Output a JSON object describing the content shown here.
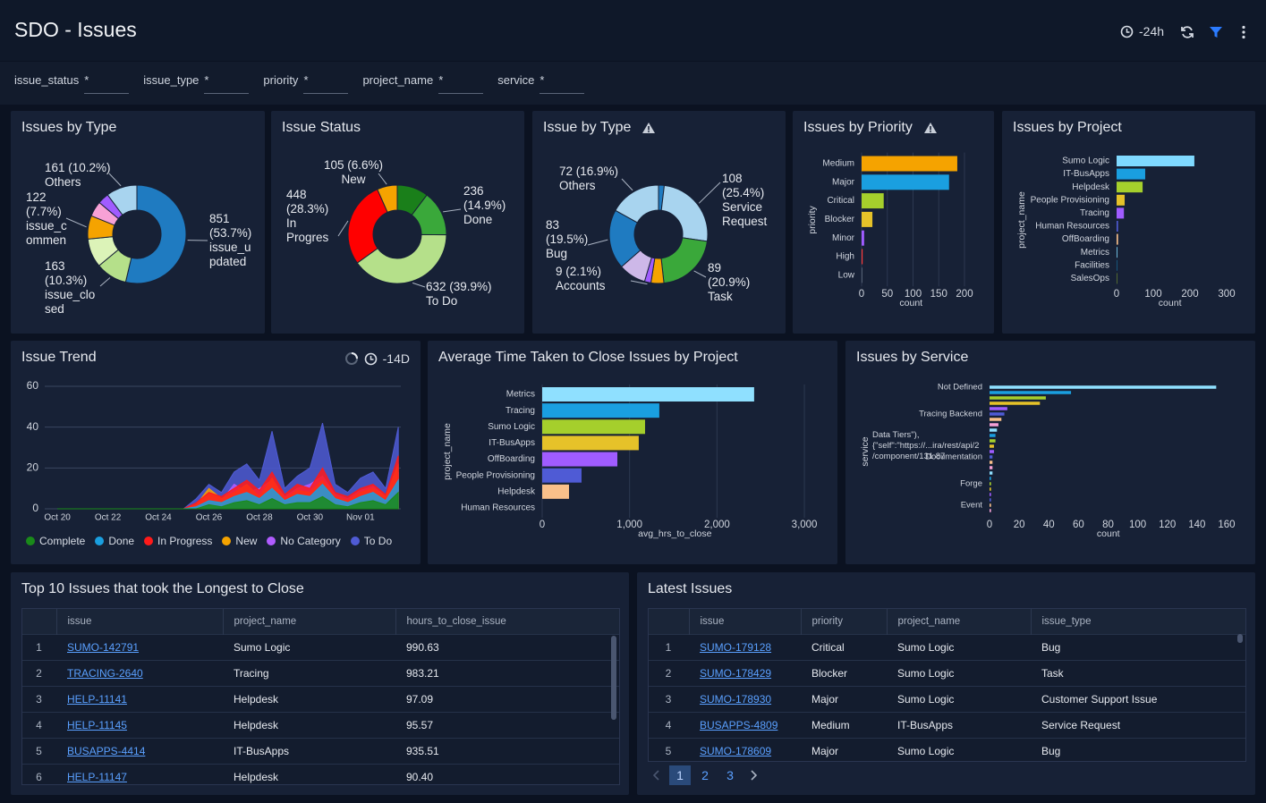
{
  "header": {
    "title": "SDO - Issues",
    "time_range": "-24h"
  },
  "filters": [
    {
      "label": "issue_status",
      "value": "*"
    },
    {
      "label": "issue_type",
      "value": "*"
    },
    {
      "label": "priority",
      "value": "*"
    },
    {
      "label": "project_name",
      "value": "*"
    },
    {
      "label": "service",
      "value": "*"
    }
  ],
  "chart_data": [
    {
      "type": "pie",
      "title": "Issues by Type",
      "categories": [
        "issue_updated",
        "issue_closed",
        null,
        "issue_commen",
        null,
        null,
        "Others"
      ],
      "values": [
        851,
        163,
        150,
        122,
        80,
        58,
        161
      ],
      "value_labels": [
        "851 (53.7%)",
        "163 (10.3%)",
        null,
        "122 (7.7%)",
        null,
        null,
        "161 (10.2%)"
      ],
      "colors": [
        "#1f7bc1",
        "#b5e08a",
        "#dcf3b8",
        "#f5a300",
        "#f7a1d6",
        "#a05cff",
        "#a8d4ef"
      ]
    },
    {
      "type": "pie",
      "title": "Issue Status",
      "categories": [
        null,
        "Done",
        "To Do",
        "In Progres",
        "New"
      ],
      "values": [
        163,
        236,
        632,
        448,
        105
      ],
      "value_labels": [
        null,
        "236 (14.9%)",
        "632 (39.9%)",
        "448 (28.3%)",
        "105 (6.6%)"
      ],
      "colors": [
        "#1a7f1a",
        "#3aa83a",
        "#b5e08a",
        "#ff0000",
        "#f5a300"
      ]
    },
    {
      "type": "pie",
      "title": "Issue by Type",
      "categories": [
        null,
        "Service Request",
        "Task",
        null,
        "Accounts",
        null,
        "Bug",
        "Others"
      ],
      "values": [
        8,
        108,
        89,
        18,
        9,
        38,
        83,
        72
      ],
      "value_labels": [
        null,
        "108 (25.4%)",
        "89 (20.9%)",
        null,
        "9 (2.1%)",
        null,
        "83 (19.5%)",
        "72 (16.9%)"
      ],
      "colors": [
        "#1f7bc1",
        "#a8d4ef",
        "#3aa83a",
        "#f5a300",
        "#a05cff",
        "#cdb8e8",
        "#1f7bc1",
        "#a8d4ef"
      ]
    },
    {
      "type": "bar",
      "title": "Issues by Priority",
      "orientation": "horizontal",
      "categories": [
        "Medium",
        "Major",
        "Critical",
        "Blocker",
        "Minor",
        "High",
        "Low"
      ],
      "values": [
        186,
        170,
        43,
        21,
        5,
        2,
        1
      ],
      "colors": [
        "#f5a300",
        "#1a9fe0",
        "#a5cf2c",
        "#e6c229",
        "#a05cff",
        "#ff3b3b",
        "#7f8a9e"
      ],
      "xlim": [
        0,
        220
      ],
      "xticks": [
        0,
        50,
        100,
        150,
        200
      ],
      "xlabel": "count",
      "ylabel": "priority",
      "grid": true
    },
    {
      "type": "bar",
      "title": "Issues by Project",
      "orientation": "horizontal",
      "categories": [
        "Sumo Logic",
        "IT-BusApps",
        "Helpdesk",
        "People Provisioning",
        "Tracing",
        "Human Resources",
        "OffBoarding",
        "Metrics",
        "Facilities",
        "SalesOps"
      ],
      "values": [
        212,
        78,
        71,
        22,
        20,
        4,
        4,
        2,
        1,
        1
      ],
      "colors": [
        "#7fd9ff",
        "#1a9fe0",
        "#a5cf2c",
        "#e6c229",
        "#a05cff",
        "#4f5bd5",
        "#f9c08a",
        "#7fd9ff",
        "#1a9fe0",
        "#a5cf2c"
      ],
      "xlim": [
        0,
        330
      ],
      "xticks": [
        0,
        100,
        200,
        300
      ],
      "xlabel": "count",
      "ylabel": "project_name",
      "grid": false
    },
    {
      "type": "line",
      "title": "Issue Trend",
      "time_range": "-14D",
      "x": [
        0,
        0.5,
        1,
        1.5,
        2,
        2.5,
        3,
        3.5,
        4,
        4.5,
        5,
        5.5,
        6,
        6.5,
        7,
        7.5,
        8,
        8.5,
        9,
        9.5,
        10,
        10.5,
        11,
        11.5,
        12,
        12.5,
        13,
        13.5
      ],
      "xlim": [
        -0.5,
        13.6
      ],
      "xticks": [
        {
          "value": 0,
          "label": "Oct 20"
        },
        {
          "value": 2,
          "label": "Oct 22"
        },
        {
          "value": 4,
          "label": "Oct 24"
        },
        {
          "value": 6,
          "label": "Oct 26"
        },
        {
          "value": 8,
          "label": "Oct 28"
        },
        {
          "value": 10,
          "label": "Oct 30"
        },
        {
          "value": 12,
          "label": "Nov 01"
        }
      ],
      "ylim": [
        0,
        60
      ],
      "yticks": [
        0,
        20,
        40,
        60
      ],
      "grid": true,
      "series": [
        {
          "name": "Complete",
          "color": "#1a8a1a",
          "values": [
            0,
            0,
            0,
            0,
            0,
            0,
            0,
            0,
            0,
            0,
            0,
            0,
            2,
            1,
            3,
            4,
            2,
            5,
            2,
            3,
            3,
            6,
            2,
            1,
            3,
            4,
            2,
            8
          ]
        },
        {
          "name": "Done",
          "color": "#1a9fe0",
          "values": [
            0,
            0,
            0,
            0,
            0,
            0,
            0,
            0,
            0,
            0,
            0,
            1,
            4,
            3,
            6,
            8,
            5,
            10,
            4,
            7,
            6,
            12,
            5,
            3,
            6,
            8,
            4,
            14
          ]
        },
        {
          "name": "In Progress",
          "color": "#ff1a1a",
          "values": [
            0,
            0,
            0,
            0,
            0,
            0,
            0,
            0,
            0,
            0,
            0,
            3,
            8,
            6,
            10,
            14,
            9,
            18,
            7,
            12,
            10,
            20,
            8,
            6,
            10,
            12,
            7,
            26
          ]
        },
        {
          "name": "New",
          "color": "#f5a300",
          "values": [
            0,
            0,
            0,
            0,
            0,
            0,
            0,
            0,
            0,
            0,
            0,
            2,
            10,
            5,
            8,
            12,
            6,
            15,
            5,
            9,
            8,
            14,
            6,
            4,
            8,
            10,
            6,
            22
          ]
        },
        {
          "name": "No Category",
          "color": "#b05cff",
          "values": [
            0,
            0,
            0,
            0,
            0,
            0,
            0,
            0,
            0,
            0,
            0,
            2,
            6,
            4,
            12,
            8,
            10,
            14,
            6,
            10,
            12,
            16,
            7,
            5,
            9,
            11,
            6,
            18
          ]
        },
        {
          "name": "To Do",
          "color": "#4f5bd5",
          "values": [
            0,
            0,
            0,
            0,
            0,
            0,
            0,
            0,
            0,
            0,
            0,
            5,
            12,
            8,
            18,
            22,
            14,
            38,
            10,
            16,
            20,
            42,
            12,
            8,
            15,
            18,
            10,
            40
          ]
        }
      ]
    },
    {
      "type": "bar",
      "title": "Average Time Taken to Close Issues by Project",
      "orientation": "horizontal",
      "categories": [
        "Metrics",
        "Tracing",
        "Sumo Logic",
        "IT-BusApps",
        "OffBoarding",
        "People Provisioning",
        "Helpdesk",
        "Human Resources"
      ],
      "values": [
        2425,
        1340,
        1177,
        1105,
        860,
        450,
        307,
        0
      ],
      "colors": [
        "#8fe0ff",
        "#1a9fe0",
        "#a5cf2c",
        "#e6c229",
        "#a05cff",
        "#4f5bd5",
        "#f9c08a",
        "#f7a1d6"
      ],
      "xlim": [
        0,
        3200
      ],
      "xticks": [
        0,
        {
          "value": 1000,
          "label": "1,000"
        },
        {
          "value": 2000,
          "label": "2,000"
        },
        {
          "value": 3000,
          "label": "3,000"
        }
      ],
      "xlabel": "avg_hrs_to_close",
      "ylabel": "project_name",
      "grid": true
    },
    {
      "type": "bar",
      "title": "Issues by Service",
      "orientation": "horizontal",
      "categories": [
        "Not Defined",
        null,
        null,
        null,
        null,
        "Tracing Backend",
        null,
        null,
        null,
        null,
        null,
        null,
        "Data Tiers\"),{\"self\":\"https://...ira/rest/api/2/component/131 87",
        "Documentation",
        null,
        null,
        null,
        null,
        "Forge",
        null,
        null,
        null,
        "Event",
        null
      ],
      "values": [
        153,
        55,
        38,
        34,
        12,
        10,
        8,
        6,
        5,
        4,
        4,
        3,
        3,
        2,
        2,
        2,
        2,
        1,
        1,
        1,
        1,
        1,
        1,
        1
      ],
      "colors": [
        "#8fe0ff",
        "#1a9fe0",
        "#a5cf2c",
        "#e6c229",
        "#a05cff",
        "#4f5bd5",
        "#f9c08a",
        "#f7a1d6"
      ],
      "xlim": [
        0,
        170
      ],
      "xticks": [
        0,
        20,
        40,
        60,
        80,
        100,
        120,
        140,
        160
      ],
      "xlabel": "count",
      "ylabel": "service",
      "grid": false
    }
  ],
  "tables": [
    {
      "title": "Top 10 Issues that took the Longest to Close",
      "columns": [
        "issue",
        "project_name",
        "hours_to_close_issue"
      ],
      "rows": [
        [
          "1",
          "SUMO-142791",
          "Sumo Logic",
          "990.63"
        ],
        [
          "2",
          "TRACING-2640",
          "Tracing",
          "983.21"
        ],
        [
          "3",
          "HELP-11141",
          "Helpdesk",
          "97.09"
        ],
        [
          "4",
          "HELP-11145",
          "Helpdesk",
          "95.57"
        ],
        [
          "5",
          "BUSAPPS-4414",
          "IT-BusApps",
          "935.51"
        ],
        [
          "6",
          "HELP-11147",
          "Helpdesk",
          "90.40"
        ]
      ]
    },
    {
      "title": "Latest Issues",
      "columns": [
        "issue",
        "priority",
        "project_name",
        "issue_type"
      ],
      "rows": [
        [
          "1",
          "SUMO-179128",
          "Critical",
          "Sumo Logic",
          "Bug"
        ],
        [
          "2",
          "SUMO-178429",
          "Blocker",
          "Sumo Logic",
          "Task"
        ],
        [
          "3",
          "SUMO-178930",
          "Major",
          "Sumo Logic",
          "Customer Support Issue"
        ],
        [
          "4",
          "BUSAPPS-4809",
          "Medium",
          "IT-BusApps",
          "Service Request"
        ],
        [
          "5",
          "SUMO-178609",
          "Major",
          "Sumo Logic",
          "Bug"
        ]
      ],
      "pages": [
        "1",
        "2",
        "3"
      ]
    }
  ]
}
